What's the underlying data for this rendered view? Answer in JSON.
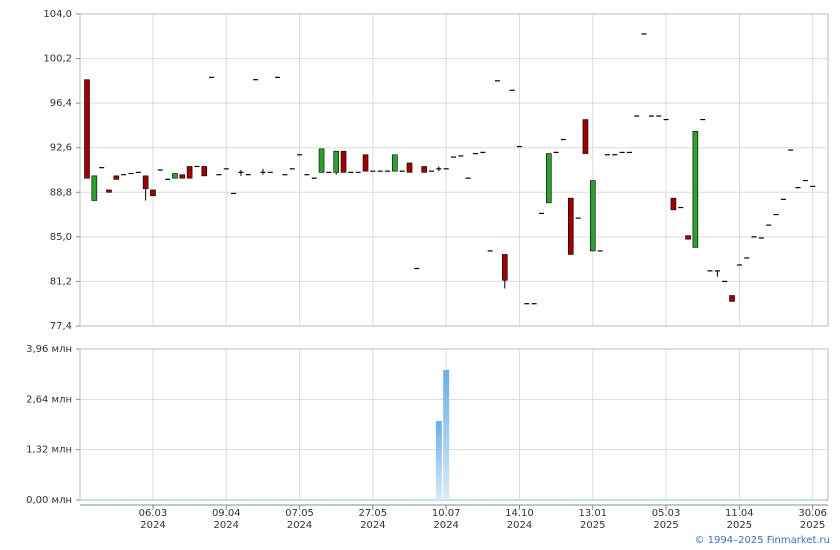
{
  "chart_data": [
    {
      "type": "candlestick",
      "series": [
        {
          "open": [
            98.4,
            88.1,
            90.9,
            89.0,
            90.2,
            90.3,
            90.4,
            90.5,
            90.2,
            89.0,
            90.7,
            89.9,
            90.0,
            90.3,
            91.0,
            91.0,
            91.0,
            98.6,
            90.3,
            90.8,
            88.7,
            90.5,
            90.3,
            98.4,
            90.5,
            90.5,
            98.6,
            90.3,
            90.8,
            92.0,
            90.3,
            90.0,
            90.5,
            90.5,
            90.5,
            92.3,
            90.5,
            90.5,
            92.0,
            90.6,
            90.6,
            90.6,
            90.6,
            90.6,
            91.3,
            82.3,
            91.0,
            90.6,
            90.8,
            90.8,
            91.8,
            91.9,
            90.0,
            92.1,
            92.2,
            83.8,
            98.3,
            83.5,
            97.5,
            92.7,
            79.3,
            79.3,
            87.0,
            87.9,
            92.2,
            93.3,
            88.3,
            86.6,
            95.0,
            83.8,
            83.8,
            92.0,
            92.0,
            92.2,
            92.2,
            95.3,
            102.3,
            95.3,
            95.3,
            95.0,
            88.3,
            87.5,
            85.1,
            84.1,
            95.0,
            82.1,
            82.1,
            81.2,
            80.0,
            82.6,
            83.2,
            85.0,
            84.9,
            86.0,
            86.9,
            88.2,
            92.4,
            89.2,
            89.8,
            89.3
          ],
          "high": [
            98.4,
            90.2,
            90.9,
            89.0,
            90.2,
            90.3,
            90.4,
            90.5,
            90.2,
            89.0,
            90.7,
            89.9,
            90.4,
            90.3,
            91.0,
            91.0,
            91.0,
            98.6,
            90.3,
            90.8,
            88.7,
            90.7,
            90.3,
            98.4,
            90.8,
            90.5,
            98.6,
            90.3,
            90.8,
            92.0,
            90.3,
            90.0,
            92.5,
            90.5,
            92.3,
            92.3,
            90.5,
            90.5,
            92.0,
            90.6,
            90.6,
            90.6,
            92.0,
            90.6,
            91.3,
            82.3,
            91.0,
            90.6,
            91.0,
            90.8,
            91.8,
            91.9,
            90.0,
            92.1,
            92.2,
            83.8,
            98.3,
            83.5,
            97.5,
            92.7,
            79.3,
            79.3,
            87.0,
            92.1,
            92.2,
            93.3,
            88.3,
            86.6,
            95.0,
            89.8,
            83.8,
            92.0,
            92.0,
            92.2,
            92.2,
            95.3,
            102.3,
            95.3,
            95.3,
            95.0,
            88.3,
            87.5,
            85.1,
            94.0,
            95.0,
            82.1,
            82.1,
            81.2,
            80.0,
            82.6,
            83.2,
            85.0,
            84.9,
            86.0,
            86.9,
            88.2,
            92.4,
            89.2,
            89.8,
            89.3
          ],
          "low": [
            90.0,
            88.1,
            90.9,
            88.8,
            89.9,
            90.3,
            90.4,
            90.5,
            88.1,
            88.5,
            90.7,
            89.9,
            90.0,
            90.0,
            90.0,
            91.0,
            90.2,
            98.6,
            90.3,
            90.8,
            88.7,
            90.2,
            90.3,
            98.4,
            90.3,
            90.5,
            98.6,
            90.3,
            90.8,
            92.0,
            90.3,
            90.0,
            90.5,
            90.5,
            90.3,
            90.5,
            90.5,
            90.5,
            90.6,
            90.6,
            90.6,
            90.6,
            90.6,
            90.6,
            90.5,
            82.3,
            90.5,
            90.6,
            90.6,
            90.8,
            91.8,
            91.9,
            90.0,
            92.1,
            92.2,
            83.8,
            98.3,
            80.6,
            97.5,
            92.7,
            79.3,
            79.3,
            87.0,
            87.9,
            92.2,
            93.3,
            83.5,
            86.6,
            92.1,
            83.8,
            83.8,
            92.0,
            92.0,
            92.2,
            92.2,
            95.3,
            102.3,
            95.3,
            95.3,
            95.0,
            87.3,
            87.5,
            84.8,
            84.1,
            95.0,
            82.1,
            81.6,
            81.2,
            79.5,
            82.6,
            83.2,
            85.0,
            84.9,
            86.0,
            86.9,
            88.2,
            92.4,
            89.2,
            89.8,
            89.3
          ],
          "close": [
            90.0,
            90.2,
            90.9,
            88.8,
            89.9,
            90.3,
            90.4,
            90.5,
            89.1,
            88.5,
            90.7,
            89.9,
            90.4,
            90.0,
            90.0,
            91.0,
            90.2,
            98.6,
            90.3,
            90.8,
            88.7,
            90.5,
            90.3,
            98.4,
            90.5,
            90.5,
            98.6,
            90.3,
            90.8,
            92.0,
            90.3,
            90.0,
            92.5,
            90.5,
            92.3,
            90.5,
            90.5,
            90.5,
            90.6,
            90.6,
            90.6,
            90.6,
            92.0,
            90.6,
            90.5,
            82.3,
            90.5,
            90.6,
            90.8,
            90.8,
            91.8,
            91.9,
            90.0,
            92.1,
            92.2,
            83.8,
            98.3,
            81.3,
            97.5,
            92.7,
            79.3,
            79.3,
            87.0,
            92.1,
            92.2,
            93.3,
            83.5,
            86.6,
            92.1,
            89.8,
            83.8,
            92.0,
            92.0,
            92.2,
            92.2,
            95.3,
            102.3,
            95.3,
            95.3,
            95.0,
            87.3,
            87.5,
            84.8,
            94.0,
            95.0,
            82.1,
            82.1,
            81.2,
            79.5,
            82.6,
            83.2,
            85.0,
            84.9,
            86.0,
            86.9,
            88.2,
            92.4,
            89.2,
            89.8,
            89.3
          ]
        }
      ],
      "up_color": "#2ca02c",
      "down_color": "#a00000",
      "doji_color": "#000000",
      "ylim": [
        77.4,
        104.0
      ],
      "yticks": [
        {
          "value": 77.4,
          "label": "77,4"
        },
        {
          "value": 81.2,
          "label": "81,2"
        },
        {
          "value": 85.0,
          "label": "85,0"
        },
        {
          "value": 88.8,
          "label": "88,8"
        },
        {
          "value": 92.6,
          "label": "92,6"
        },
        {
          "value": 96.4,
          "label": "96,4"
        },
        {
          "value": 100.2,
          "label": "100,2"
        },
        {
          "value": 104.0,
          "label": "104,0"
        }
      ],
      "grid": true
    },
    {
      "type": "bar",
      "categories": [
        null,
        null,
        null,
        null,
        null,
        null,
        null,
        null,
        null,
        "06.03\n2024",
        null,
        null,
        null,
        null,
        null,
        null,
        null,
        null,
        null,
        "09.04\n2024",
        null,
        null,
        null,
        null,
        null,
        null,
        null,
        null,
        null,
        "07.05\n2024",
        null,
        null,
        null,
        null,
        null,
        null,
        null,
        null,
        null,
        "27.05\n2024",
        null,
        null,
        null,
        null,
        null,
        null,
        null,
        null,
        null,
        "10.07\n2024",
        null,
        null,
        null,
        null,
        null,
        null,
        null,
        null,
        null,
        "14.10\n2024",
        null,
        null,
        null,
        null,
        null,
        null,
        null,
        null,
        null,
        "13.01\n2025",
        null,
        null,
        null,
        null,
        null,
        null,
        null,
        null,
        null,
        "05.03\n2025",
        null,
        null,
        null,
        null,
        null,
        null,
        null,
        null,
        null,
        "11.04\n2025",
        null,
        null,
        null,
        null,
        null,
        null,
        null,
        null,
        null,
        "30.06\n2025"
      ],
      "values": [
        0,
        0,
        0,
        0,
        0,
        0,
        0,
        0,
        0,
        0,
        0,
        0,
        0,
        0,
        0,
        0,
        0,
        0,
        0,
        0,
        0,
        0,
        0,
        0,
        0,
        0,
        0,
        0,
        0,
        0,
        0,
        0,
        0,
        0,
        0,
        0,
        0,
        0,
        0,
        0,
        0,
        0,
        0,
        0,
        0,
        0,
        0,
        0,
        2.07,
        3.41,
        0,
        0,
        0,
        0,
        0,
        0,
        0,
        0,
        0,
        0,
        0,
        0,
        0,
        0,
        0,
        0,
        0,
        0,
        0,
        0,
        0,
        0,
        0,
        0,
        0,
        0,
        0,
        0,
        0,
        0,
        0,
        0,
        0,
        0,
        0,
        0,
        0,
        0,
        0,
        0,
        0,
        0,
        0,
        0,
        0,
        0,
        0,
        0,
        0,
        0
      ],
      "color": "#7db7e8",
      "ylim": [
        0,
        3.96
      ],
      "yticks": [
        {
          "value": 0,
          "label": "0,00 млн"
        },
        {
          "value": 1.32,
          "label": "1,32 млн"
        },
        {
          "value": 2.64,
          "label": "2,64 млн"
        },
        {
          "value": 3.96,
          "label": "3,96 млн"
        }
      ],
      "grid": true
    }
  ],
  "footer": "© 1994–2025 Finmarket.ru"
}
